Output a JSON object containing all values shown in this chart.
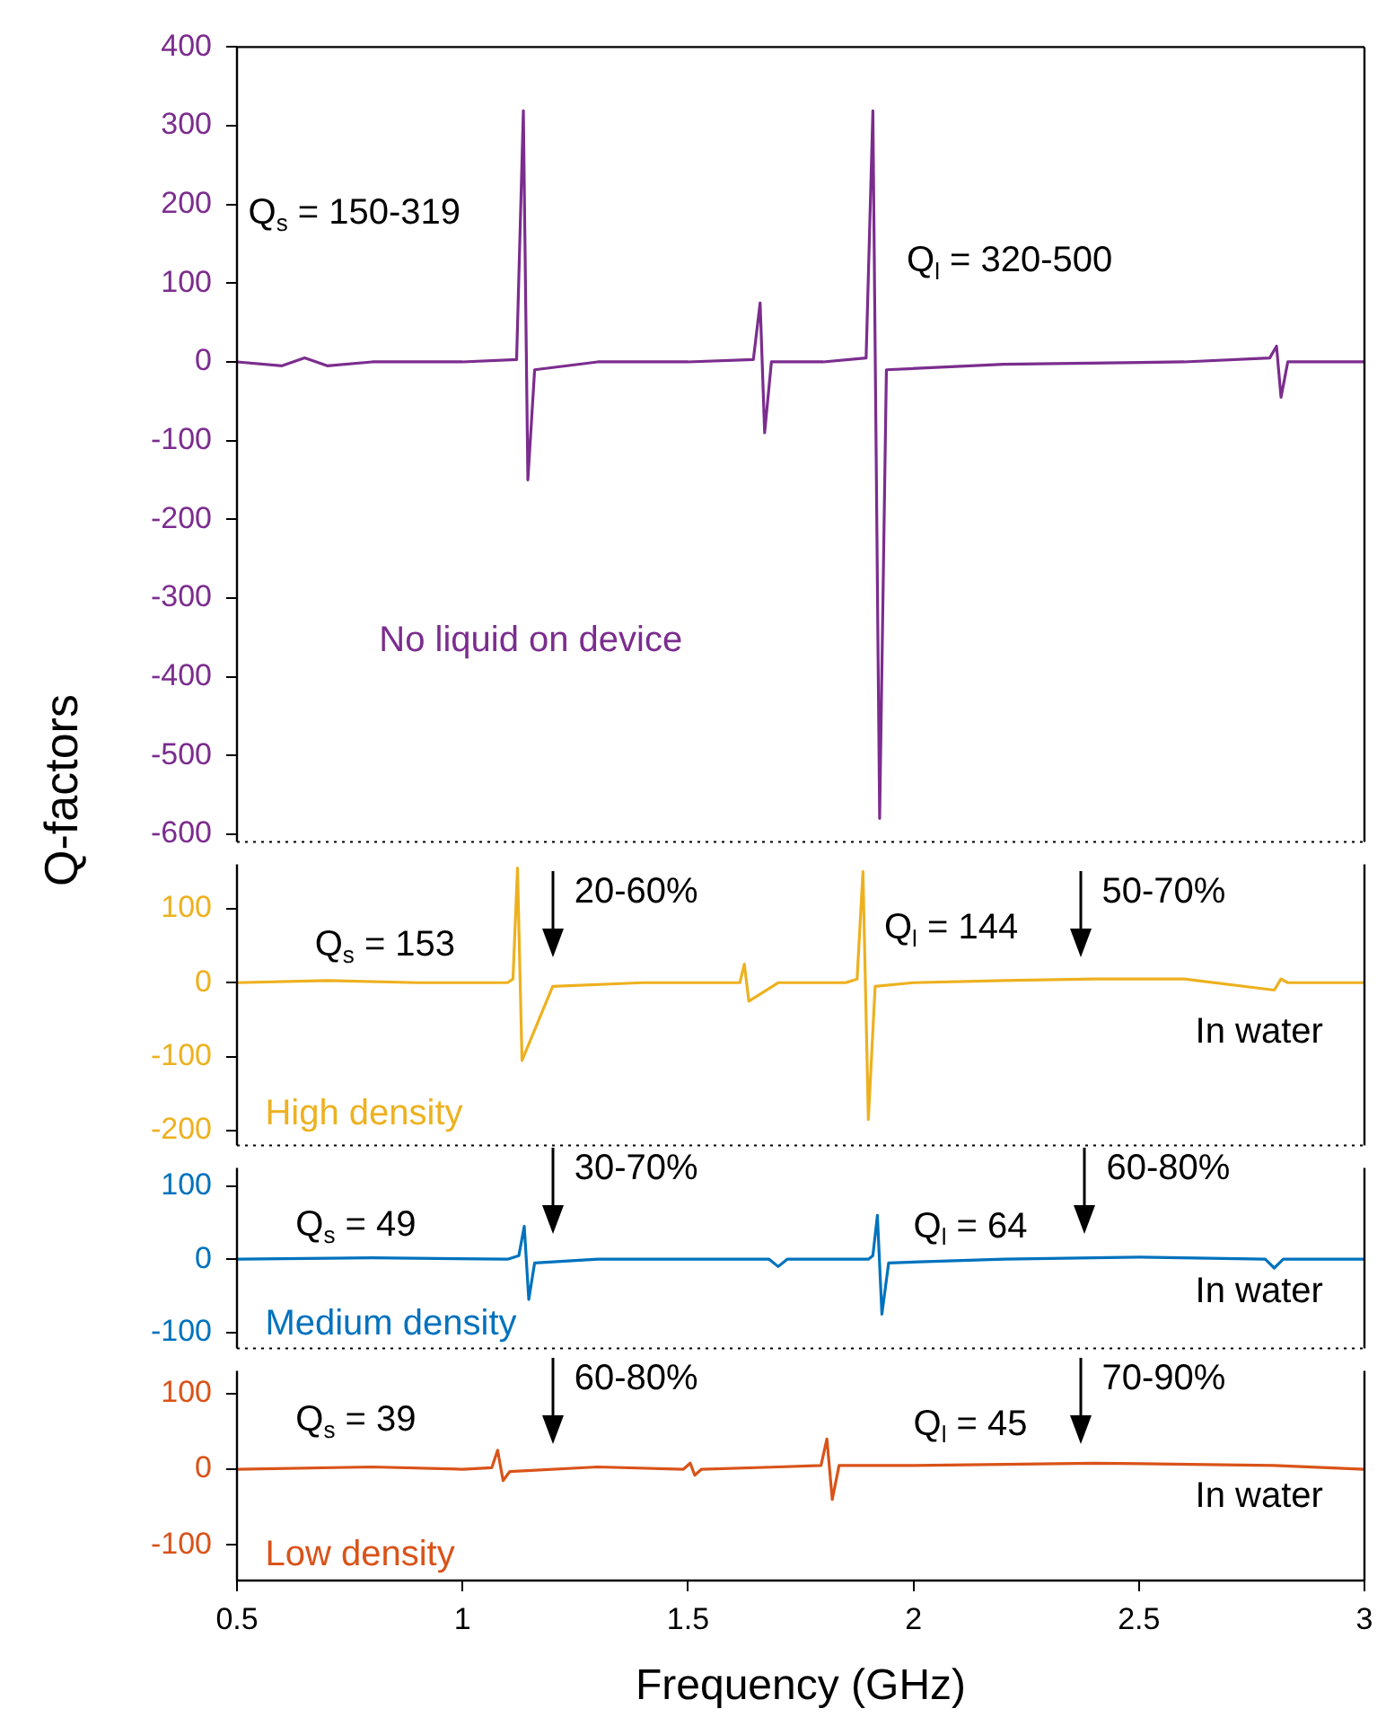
{
  "chart_data": [
    {
      "type": "line",
      "ylabel": "Q-factors",
      "x": [
        0.5,
        0.6,
        0.65,
        0.7,
        0.8,
        1.0,
        1.12,
        1.135,
        1.145,
        1.16,
        1.3,
        1.5,
        1.645,
        1.66,
        1.67,
        1.685,
        1.8,
        1.895,
        1.91,
        1.925,
        1.94,
        2.2,
        2.6,
        2.79,
        2.805,
        2.815,
        2.83,
        3.0
      ],
      "series": [
        {
          "color": "#7b2d8e",
          "values": [
            0,
            -5,
            5,
            -5,
            0,
            0,
            3,
            319,
            -150,
            -10,
            0,
            0,
            3,
            75,
            -90,
            0,
            0,
            5,
            319,
            -580,
            -10,
            -3,
            0,
            5,
            20,
            -45,
            0,
            0
          ]
        }
      ],
      "xlim": [
        0.5,
        3
      ],
      "xticks": [
        0.5,
        1,
        1.5,
        2,
        2.5,
        3
      ],
      "ylim": [
        -610,
        400
      ],
      "yticks": [
        -600,
        -500,
        -400,
        -300,
        -200,
        -100,
        0,
        100,
        200,
        300,
        400
      ],
      "tick_labels": "y",
      "annotations": [
        "Q$_{s}$ = 150-319",
        "Q$_{l}$ = 320-500",
        "No liquid on device"
      ]
    },
    {
      "type": "line",
      "x": [
        0.5,
        0.7,
        0.9,
        1.1,
        1.112,
        1.122,
        1.132,
        1.2,
        1.4,
        1.6,
        1.615,
        1.625,
        1.635,
        1.7,
        1.85,
        1.875,
        1.888,
        1.9,
        1.915,
        2.0,
        2.2,
        2.4,
        2.6,
        2.8,
        2.815,
        2.83,
        3.0
      ],
      "series": [
        {
          "color": "#edb120",
          "values": [
            0,
            3,
            0,
            0,
            5,
            155,
            -105,
            -5,
            0,
            0,
            0,
            25,
            -25,
            0,
            0,
            5,
            150,
            -185,
            -5,
            0,
            3,
            5,
            5,
            -10,
            5,
            0,
            0
          ]
        }
      ],
      "xlim": [
        0.5,
        3
      ],
      "xticks": [
        0.5,
        1,
        1.5,
        2,
        2.5,
        3
      ],
      "ylim": [
        -220,
        160
      ],
      "yticks": [
        -200,
        -100,
        0,
        100
      ],
      "tick_labels": "y",
      "annotations": [
        "Q$_{s}$ = 153",
        {
          "text": "20-60%",
          "x": 1.2,
          "y": 0
        },
        "Q$_{l}$ = 144",
        {
          "text": "50-70%",
          "x": 2.37,
          "y": 0
        },
        "In water",
        "High density"
      ]
    },
    {
      "type": "line",
      "x": [
        0.5,
        0.8,
        1.1,
        1.125,
        1.137,
        1.147,
        1.16,
        1.3,
        1.5,
        1.68,
        1.7,
        1.72,
        1.9,
        1.91,
        1.92,
        1.93,
        1.945,
        2.2,
        2.5,
        2.78,
        2.8,
        2.82,
        3.0
      ],
      "series": [
        {
          "color": "#0072bd",
          "values": [
            0,
            2,
            0,
            5,
            45,
            -55,
            -5,
            0,
            0,
            0,
            -10,
            0,
            0,
            5,
            60,
            -75,
            -5,
            0,
            3,
            0,
            -12,
            0,
            0
          ]
        }
      ],
      "xlim": [
        0.5,
        3
      ],
      "xticks": [
        0.5,
        1,
        1.5,
        2,
        2.5,
        3
      ],
      "ylim": [
        -122,
        125
      ],
      "yticks": [
        -100,
        0,
        100
      ],
      "tick_labels": "y",
      "annotations": [
        "Q$_{s}$ = 49",
        {
          "text": "30-70%",
          "x": 1.2,
          "y": 0
        },
        "Q$_{l}$ = 64",
        {
          "text": "60-80%",
          "x": 2.38,
          "y": 0
        },
        "In water",
        "Medium density"
      ]
    },
    {
      "type": "line",
      "xlabel": "Frequency (GHz)",
      "x": [
        0.5,
        0.8,
        1.0,
        1.065,
        1.078,
        1.09,
        1.105,
        1.3,
        1.49,
        1.505,
        1.515,
        1.53,
        1.7,
        1.795,
        1.808,
        1.82,
        1.835,
        2.0,
        2.4,
        2.8,
        3.0
      ],
      "series": [
        {
          "color": "#d95319",
          "values": [
            0,
            3,
            0,
            2,
            25,
            -15,
            -3,
            3,
            0,
            8,
            -8,
            0,
            3,
            5,
            40,
            -40,
            5,
            5,
            8,
            5,
            0
          ]
        }
      ],
      "xlim": [
        0.5,
        3
      ],
      "xticks": [
        0.5,
        1,
        1.5,
        2,
        2.5,
        3
      ],
      "ylim": [
        -147,
        130
      ],
      "yticks": [
        -100,
        0,
        100
      ],
      "annotations": [
        "Q$_{s}$ = 39",
        {
          "text": "60-80%",
          "x": 1.2,
          "y": 0
        },
        "Q$_{l}$ = 45",
        {
          "text": "70-90%",
          "x": 2.37,
          "y": 0
        },
        "In water",
        "Low density"
      ]
    }
  ]
}
